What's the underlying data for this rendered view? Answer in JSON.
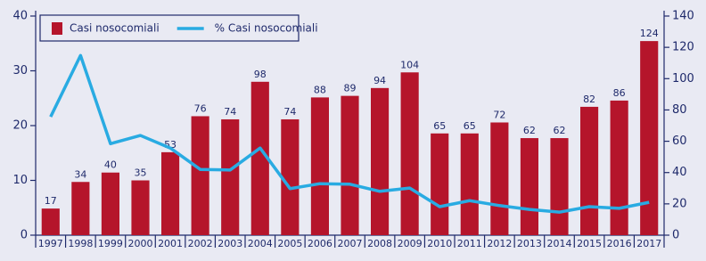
{
  "chart_data": {
    "type": "bar",
    "categories": [
      "1997",
      "1998",
      "1999",
      "2000",
      "2001",
      "2002",
      "2003",
      "2004",
      "2005",
      "2006",
      "2007",
      "2008",
      "2009",
      "2010",
      "2011",
      "2012",
      "2013",
      "2014",
      "2015",
      "2016",
      "2017"
    ],
    "series": [
      {
        "name": "Casi nosocomiali",
        "type": "bar",
        "axis": "y2",
        "color": "#b5152b",
        "values": [
          17,
          34,
          40,
          35,
          53,
          76,
          74,
          98,
          74,
          88,
          89,
          94,
          104,
          65,
          65,
          72,
          62,
          62,
          82,
          86,
          124
        ]
      },
      {
        "name": "% Casi nosocomiali",
        "type": "line",
        "axis": "y",
        "color": "#29abe2",
        "values": [
          21.6,
          32.8,
          16.7,
          18.2,
          15.9,
          12.0,
          11.9,
          15.9,
          8.5,
          9.4,
          9.3,
          8.0,
          8.6,
          5.2,
          6.3,
          5.4,
          4.7,
          4.2,
          5.2,
          4.9,
          6.0
        ]
      }
    ],
    "ylim": [
      0,
      40
    ],
    "yticks": [
      0,
      10,
      20,
      30,
      40
    ],
    "y2lim": [
      0,
      140
    ],
    "y2ticks": [
      0,
      20,
      40,
      60,
      80,
      100,
      120,
      140
    ],
    "grid": false,
    "legend": "top-left"
  }
}
